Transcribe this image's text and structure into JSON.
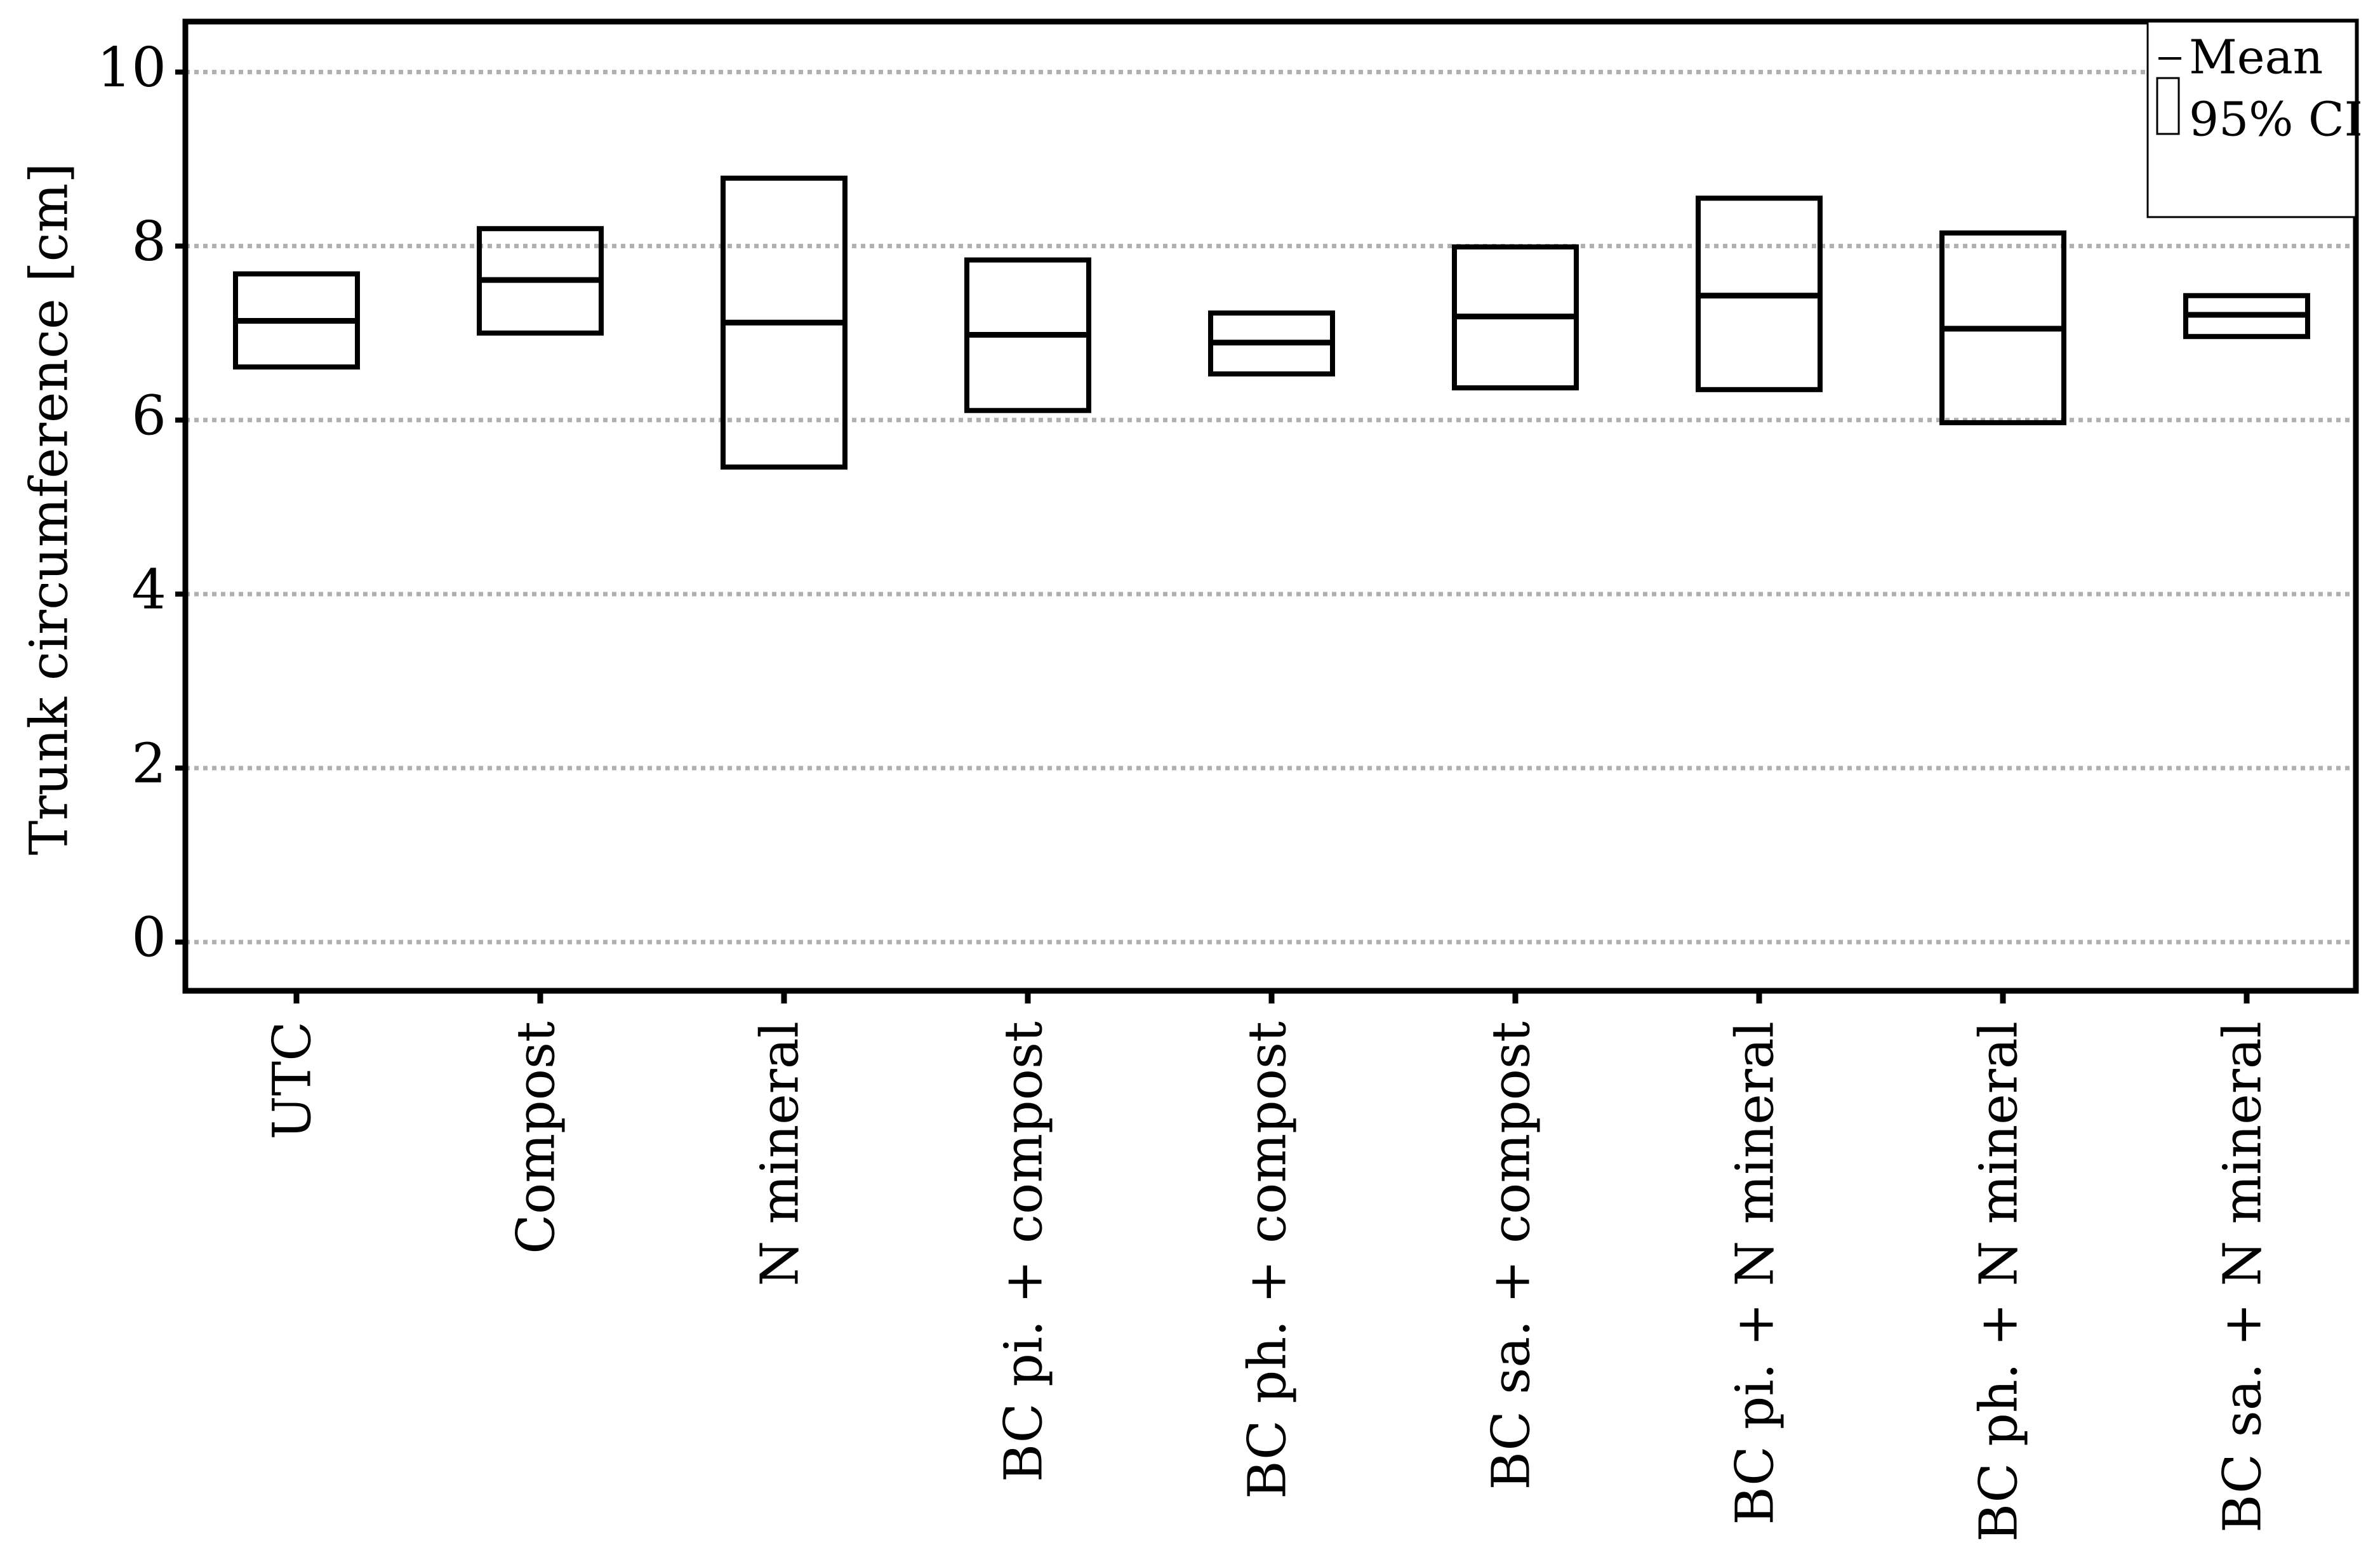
{
  "chart_data": {
    "type": "interval",
    "y_label": "Trunk circumference [cm]",
    "categories": [
      "UTC",
      "Compost",
      "N mineral",
      "BC pi. + compost",
      "BC ph. + compost",
      "BC sa. + compost",
      "BC pi. + N mineral",
      "BC ph. + N mineral",
      "BC sa. + N mineral"
    ],
    "series": [
      {
        "name": "Mean",
        "color": "#000000",
        "values": [
          7.14,
          7.61,
          7.12,
          6.98,
          6.89,
          7.19,
          7.43,
          7.05,
          7.21
        ]
      },
      {
        "name": "95% CI",
        "color": "#000000",
        "lower": [
          6.61,
          7.0,
          5.46,
          6.11,
          6.53,
          6.37,
          6.35,
          5.97,
          6.96
        ],
        "upper": [
          7.68,
          8.2,
          8.78,
          7.84,
          7.23,
          7.99,
          8.55,
          8.15,
          7.43
        ]
      }
    ],
    "ylim": [
      -0.56,
      10.58
    ],
    "yticks": [
      0,
      2,
      4,
      6,
      8,
      10
    ],
    "grid": true,
    "legend": "top-right"
  }
}
